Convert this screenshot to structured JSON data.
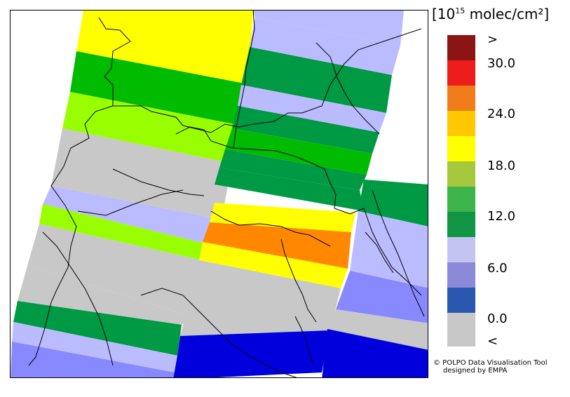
{
  "legend": {
    "unit_base": "[10",
    "unit_exp": "15",
    "unit_rest": " molec/cm²]",
    "colors": {
      "gt30": "#8b1414",
      "c30": "#ee1c1c",
      "c27": "#f07c1c",
      "c24": "#ffc800",
      "c21": "#ffff00",
      "c18": "#a6c83c",
      "c15": "#3cb44a",
      "c12": "#129646",
      "c9": "#c4c4f2",
      "c6": "#8a8ad8",
      "c3": "#2a58b0",
      "lt": "#c8c8c8"
    },
    "labels": [
      ">",
      "30.0",
      "24.0",
      "18.0",
      "12.0",
      "6.0",
      "0.0",
      "<"
    ]
  },
  "credit": {
    "line1": "© POLPO Data Visualisation Tool",
    "line2": "designed by EMPA"
  },
  "map": {
    "band_colors": {
      "yellow": "#ffff00",
      "lime": "#99ff00",
      "green": "#00bb00",
      "darkgreen": "#009944",
      "lavender": "#bbbbff",
      "blue_med": "#8888ff",
      "blue": "#0000dd",
      "gray": "#c8c8c8",
      "orange": "#ff8800"
    }
  }
}
